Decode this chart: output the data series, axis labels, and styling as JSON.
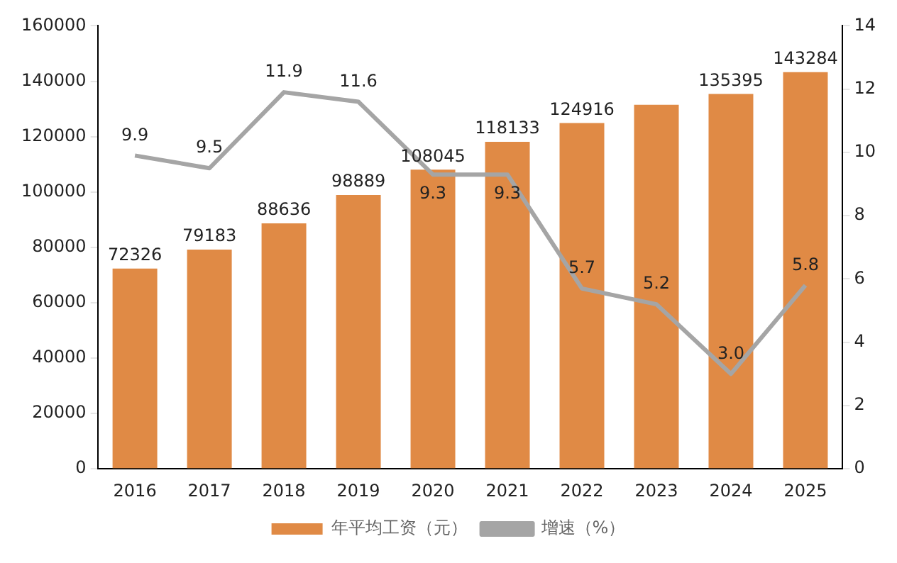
{
  "chart_data": {
    "type": "bar",
    "categories": [
      "2016",
      "2017",
      "2018",
      "2019",
      "2020",
      "2021",
      "2022",
      "2023",
      "2024",
      "2025"
    ],
    "series": [
      {
        "name": "年平均工资（元）",
        "color": "#e08a45",
        "values": [
          72326,
          79183,
          88636,
          98889,
          108045,
          118133,
          124916,
          131500,
          135395,
          143284
        ],
        "value_labels": [
          "72326",
          "79183",
          "88636",
          "98889",
          "108045",
          "118133",
          "124916",
          null,
          "135395",
          "143284"
        ]
      },
      {
        "name": "增速（%）",
        "type": "line",
        "axis": "y2",
        "color": "#a5a5a5",
        "values": [
          9.9,
          9.5,
          11.9,
          11.6,
          9.3,
          9.3,
          5.7,
          5.2,
          3.0,
          5.8
        ],
        "value_labels": [
          "9.9",
          "9.5",
          "11.9",
          "11.6",
          "9.3",
          "9.3",
          "5.7",
          "5.2",
          "3.0",
          "5.8"
        ]
      }
    ],
    "ylim": [
      0,
      160000
    ],
    "yticks": [
      0,
      20000,
      40000,
      60000,
      80000,
      100000,
      120000,
      140000,
      160000
    ],
    "y2lim": [
      0,
      14
    ],
    "y2ticks": [
      0,
      2,
      4,
      6,
      8,
      10,
      12,
      14
    ],
    "grid": false,
    "legend": "bottom",
    "marker": "none"
  }
}
